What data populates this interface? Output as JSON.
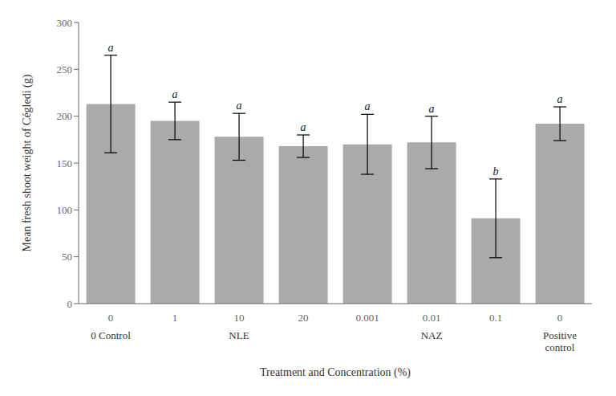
{
  "chart_data": {
    "type": "bar",
    "categories": [
      "0",
      "1",
      "10",
      "20",
      "0.001",
      "0.01",
      "0.1",
      "0"
    ],
    "values": [
      213,
      195,
      178,
      168,
      170,
      172,
      91,
      192
    ],
    "errors": [
      52,
      20,
      25,
      12,
      32,
      28,
      42,
      18
    ],
    "letters": [
      "a",
      "a",
      "a",
      "a",
      "a",
      "a",
      "b",
      "a"
    ],
    "group_labels": [
      "0 Control",
      null,
      "NLE",
      null,
      null,
      "NAZ",
      null,
      "Positive\ncontrol"
    ],
    "color": "#aaaaaa",
    "ylim": [
      0,
      300
    ],
    "yticks": [
      0,
      50,
      100,
      150,
      200,
      250,
      300
    ],
    "ylabel": "Mean fresh shoot weight of Cégledi (g)",
    "xlabel": "Treatment and Concentration (%)",
    "grid": false
  }
}
